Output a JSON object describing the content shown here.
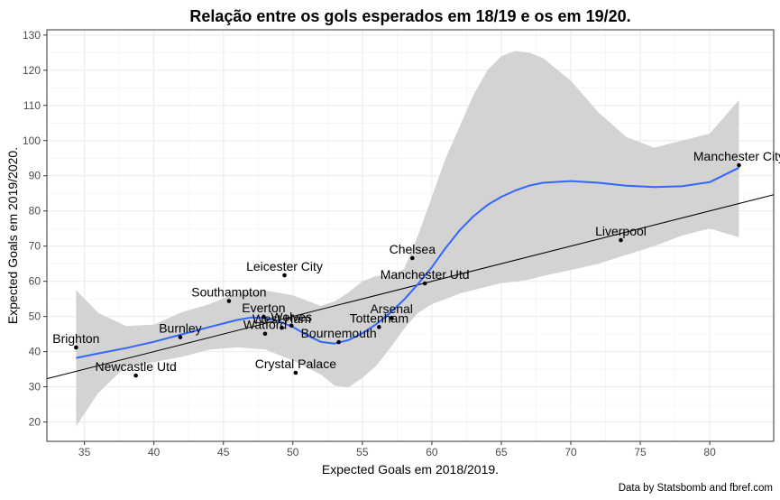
{
  "chart_data": {
    "type": "scatter",
    "title": "Relação entre os gols esperados em 18/19 e os em 19/20.",
    "xlabel": "Expected Goals em 2018/2019.",
    "ylabel": "Expected Goals em 2019/2020.",
    "caption": "Data by Statsbomb and fbref.com",
    "xlim": [
      32.3,
      84.6
    ],
    "ylim": [
      14.5,
      131.5
    ],
    "x_ticks": [
      35,
      40,
      45,
      50,
      55,
      60,
      65,
      70,
      75,
      80
    ],
    "y_ticks": [
      20,
      30,
      40,
      50,
      60,
      70,
      80,
      90,
      100,
      110,
      120,
      130
    ],
    "grid": true,
    "points": [
      {
        "label": "Brighton",
        "x": 34.4,
        "y": 41.2
      },
      {
        "label": "Newcastle Utd",
        "x": 38.7,
        "y": 33.2
      },
      {
        "label": "Burnley",
        "x": 41.9,
        "y": 44.1
      },
      {
        "label": "Southampton",
        "x": 45.4,
        "y": 54.4
      },
      {
        "label": "Everton",
        "x": 47.9,
        "y": 49.9
      },
      {
        "label": "Watford",
        "x": 48.0,
        "y": 45.1
      },
      {
        "label": "West Ham",
        "x": 49.2,
        "y": 46.8
      },
      {
        "label": "Wolves",
        "x": 49.9,
        "y": 47.4
      },
      {
        "label": "Leicester City",
        "x": 49.4,
        "y": 61.7
      },
      {
        "label": "Crystal Palace",
        "x": 50.2,
        "y": 34.0
      },
      {
        "label": "Bournemouth",
        "x": 53.3,
        "y": 42.7
      },
      {
        "label": "Tottenham",
        "x": 56.2,
        "y": 47.0
      },
      {
        "label": "Arsenal",
        "x": 57.1,
        "y": 49.6
      },
      {
        "label": "Chelsea",
        "x": 58.6,
        "y": 66.6
      },
      {
        "label": "Manchester Utd",
        "x": 59.5,
        "y": 59.4
      },
      {
        "label": "Liverpool",
        "x": 73.6,
        "y": 71.7
      },
      {
        "label": "Manchester City",
        "x": 82.1,
        "y": 93.0
      }
    ],
    "smooth_line": {
      "color": "#3366ff",
      "x": [
        34.4,
        36,
        38,
        40,
        42,
        44,
        46,
        47,
        48,
        49,
        50,
        51,
        52,
        53,
        54,
        55,
        56,
        57,
        58,
        59,
        60,
        61,
        62,
        63,
        64,
        65,
        66,
        67,
        68,
        70,
        72,
        74,
        76,
        78,
        80,
        82.1
      ],
      "y": [
        38.2,
        39.5,
        41.0,
        42.8,
        44.9,
        47.0,
        49.0,
        49.7,
        49.6,
        48.6,
        47.0,
        44.7,
        42.8,
        42.3,
        43.3,
        45.2,
        47.8,
        51.0,
        54.8,
        59.2,
        64.0,
        69.5,
        74.5,
        78.5,
        81.7,
        84.0,
        85.8,
        87.2,
        88.0,
        88.5,
        88.0,
        87.2,
        86.8,
        87.0,
        88.2,
        92.3
      ]
    },
    "confidence_band": {
      "color": "#d3d3d3",
      "x": [
        34.4,
        36,
        38,
        40,
        42,
        44,
        46,
        48,
        50,
        52,
        53,
        54,
        55,
        56,
        57,
        58,
        59,
        60,
        61,
        62,
        63,
        64,
        65,
        66,
        67,
        68,
        70,
        72,
        74,
        76,
        78,
        80,
        82.1
      ],
      "upper": [
        57.5,
        51.0,
        47.3,
        47.7,
        51.2,
        53.5,
        56.8,
        57.4,
        56.0,
        53.0,
        54.3,
        56.8,
        60.0,
        61.5,
        61.5,
        63.5,
        73.0,
        84.0,
        95.0,
        104.0,
        113.0,
        120.0,
        124.0,
        125.5,
        125.0,
        123.5,
        117.0,
        108.0,
        101.0,
        98.0,
        100.0,
        102.0,
        111.5
      ],
      "lower": [
        18.8,
        28.3,
        35.8,
        37.0,
        38.5,
        40.6,
        41.2,
        40.6,
        37.5,
        33.5,
        30.3,
        29.8,
        32.5,
        36.0,
        41.0,
        46.5,
        51.0,
        53.5,
        55.0,
        56.5,
        57.5,
        58.5,
        59.5,
        59.9,
        60.5,
        61.5,
        63.2,
        65.0,
        67.5,
        70.0,
        73.0,
        75.0,
        72.5
      ]
    },
    "reference_line": {
      "color": "#000000",
      "intercept": 0,
      "slope": 1
    }
  }
}
